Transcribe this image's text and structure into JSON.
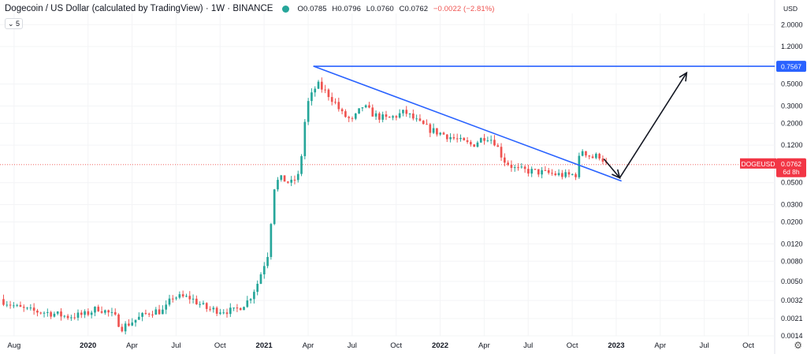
{
  "header": {
    "title": "Dogecoin / US Dollar (calculated by TradingView) · 1W · BINANCE",
    "status_color": "#26a69a",
    "open": "O0.0785",
    "high": "H0.0796",
    "low": "L0.0760",
    "close": "C0.0762",
    "change": "−0.0022 (−2.81%)"
  },
  "indicator_button": "⌄ 5",
  "currency_label": "USD",
  "price_tag": {
    "symbol": "DOGEUSD",
    "value": "0.0762",
    "countdown": "6d 8h",
    "color": "#f23645"
  },
  "resistance_tag": {
    "value": "0.7567",
    "color": "#2962ff"
  },
  "chart_data": {
    "type": "candlestick",
    "title": "Dogecoin / US Dollar (calculated by TradingView) · 1W · BINANCE",
    "y_scale": "log",
    "ylim": [
      0.0014,
      2.6
    ],
    "y_ticks": [
      {
        "v": 2.0,
        "label": "2.0000"
      },
      {
        "v": 1.2,
        "label": "1.2000"
      },
      {
        "v": 0.5,
        "label": "0.5000"
      },
      {
        "v": 0.3,
        "label": "0.3000"
      },
      {
        "v": 0.2,
        "label": "0.2000"
      },
      {
        "v": 0.12,
        "label": "0.1200"
      },
      {
        "v": 0.05,
        "label": "0.0500"
      },
      {
        "v": 0.03,
        "label": "0.0300"
      },
      {
        "v": 0.02,
        "label": "0.0200"
      },
      {
        "v": 0.012,
        "label": "0.0120"
      },
      {
        "v": 0.008,
        "label": "0.0080"
      },
      {
        "v": 0.005,
        "label": "0.0050"
      },
      {
        "v": 0.0032,
        "label": "0.0032"
      },
      {
        "v": 0.0021,
        "label": "0.0021"
      },
      {
        "v": 0.0014,
        "label": "0.0014"
      }
    ],
    "x_ticks": [
      {
        "label": "Aug",
        "year": false,
        "t": 2019.58
      },
      {
        "label": "2020",
        "year": true,
        "t": 2020.0
      },
      {
        "label": "Apr",
        "year": false,
        "t": 2020.25
      },
      {
        "label": "Jul",
        "year": false,
        "t": 2020.5
      },
      {
        "label": "Oct",
        "year": false,
        "t": 2020.75
      },
      {
        "label": "2021",
        "year": true,
        "t": 2021.0
      },
      {
        "label": "Apr",
        "year": false,
        "t": 2021.25
      },
      {
        "label": "Jul",
        "year": false,
        "t": 2021.5
      },
      {
        "label": "Oct",
        "year": false,
        "t": 2021.75
      },
      {
        "label": "2022",
        "year": true,
        "t": 2022.0
      },
      {
        "label": "Apr",
        "year": false,
        "t": 2022.25
      },
      {
        "label": "Jul",
        "year": false,
        "t": 2022.5
      },
      {
        "label": "Oct",
        "year": false,
        "t": 2022.75
      },
      {
        "label": "2023",
        "year": true,
        "t": 2023.0
      },
      {
        "label": "Apr",
        "year": false,
        "t": 2023.25
      },
      {
        "label": "Jul",
        "year": false,
        "t": 2023.5
      },
      {
        "label": "Oct",
        "year": false,
        "t": 2023.75
      }
    ],
    "up_color": "#26a69a",
    "down_color": "#ef5350",
    "anchors": [
      [
        2019.52,
        0.0033
      ],
      [
        2019.62,
        0.0027
      ],
      [
        2019.7,
        0.0025
      ],
      [
        2019.8,
        0.0024
      ],
      [
        2019.9,
        0.0022
      ],
      [
        2020.0,
        0.0023
      ],
      [
        2020.08,
        0.0027
      ],
      [
        2020.17,
        0.0022
      ],
      [
        2020.21,
        0.0017
      ],
      [
        2020.28,
        0.002
      ],
      [
        2020.38,
        0.0025
      ],
      [
        2020.45,
        0.0025
      ],
      [
        2020.5,
        0.0035
      ],
      [
        2020.6,
        0.0034
      ],
      [
        2020.7,
        0.0026
      ],
      [
        2020.85,
        0.0025
      ],
      [
        2020.93,
        0.0032
      ],
      [
        2020.98,
        0.0047
      ],
      [
        2021.04,
        0.0095
      ],
      [
        2021.08,
        0.05
      ],
      [
        2021.12,
        0.055
      ],
      [
        2021.17,
        0.049
      ],
      [
        2021.22,
        0.06
      ],
      [
        2021.26,
        0.3
      ],
      [
        2021.32,
        0.5
      ],
      [
        2021.38,
        0.4
      ],
      [
        2021.42,
        0.33
      ],
      [
        2021.46,
        0.25
      ],
      [
        2021.52,
        0.21
      ],
      [
        2021.58,
        0.3
      ],
      [
        2021.65,
        0.24
      ],
      [
        2021.72,
        0.22
      ],
      [
        2021.82,
        0.26
      ],
      [
        2021.9,
        0.2
      ],
      [
        2021.97,
        0.17
      ],
      [
        2022.06,
        0.15
      ],
      [
        2022.14,
        0.13
      ],
      [
        2022.2,
        0.12
      ],
      [
        2022.28,
        0.15
      ],
      [
        2022.33,
        0.13
      ],
      [
        2022.38,
        0.085
      ],
      [
        2022.45,
        0.068
      ],
      [
        2022.55,
        0.065
      ],
      [
        2022.64,
        0.062
      ],
      [
        2022.74,
        0.059
      ],
      [
        2022.79,
        0.061
      ],
      [
        2022.82,
        0.11
      ],
      [
        2022.88,
        0.09
      ],
      [
        2022.93,
        0.095
      ],
      [
        2022.96,
        0.0762
      ]
    ],
    "annotations": {
      "trendline": [
        [
          2021.28,
          0.76
        ],
        [
          2023.03,
          0.052
        ]
      ],
      "resistance_line": {
        "value": 0.7567,
        "from": 2021.28
      },
      "forecast_arrow": [
        [
          2022.93,
          0.087
        ],
        [
          2023.02,
          0.056
        ],
        [
          2023.4,
          0.65
        ]
      ]
    }
  }
}
